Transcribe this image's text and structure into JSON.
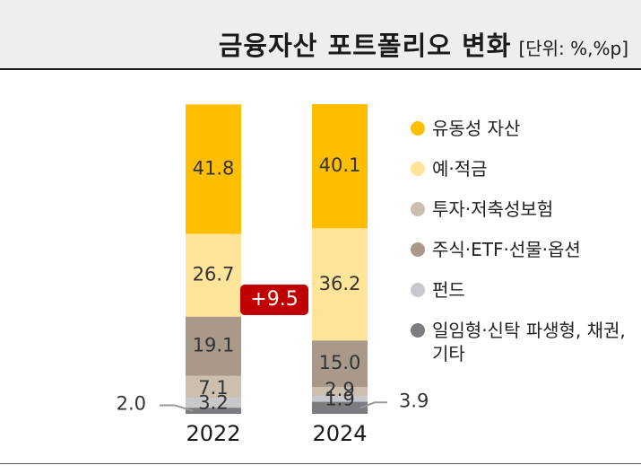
{
  "title": "금융자산 포트폴리오 변화",
  "unit": "[단위: %,%p]",
  "chart_data": {
    "type": "bar",
    "stacked": true,
    "categories": [
      "2022",
      "2024"
    ],
    "series": [
      {
        "name": "일임형·신탁 파생형, 채권, 기타",
        "values": [
          2.0,
          3.9
        ],
        "color": "#7b7b80"
      },
      {
        "name": "펀드",
        "values": [
          3.2,
          1.9
        ],
        "color": "#c6c8cc"
      },
      {
        "name": "투자·저축성보험",
        "values": [
          7.1,
          2.9
        ],
        "color": "#cdbfb0"
      },
      {
        "name": "주식·ETF·선물·옵션",
        "values": [
          19.1,
          15.0
        ],
        "color": "#a8998a"
      },
      {
        "name": "예·적금",
        "values": [
          26.7,
          36.2
        ],
        "color": "#ffe49a"
      },
      {
        "name": "유동성 자산",
        "values": [
          41.8,
          40.1
        ],
        "color": "#ffbf00"
      }
    ],
    "annotations": [
      {
        "text": "+9.5",
        "color": "#c00000"
      }
    ],
    "ylim": [
      0,
      100
    ],
    "legend": "right"
  },
  "legend_items": [
    {
      "label": "유동성 자산",
      "color": "#ffbf00"
    },
    {
      "label": "예·적금",
      "color": "#ffe49a"
    },
    {
      "label": "투자·저축성보험",
      "color": "#cdbfb0"
    },
    {
      "label": "주식·ETF·선물·옵션",
      "color": "#a8998a"
    },
    {
      "label": "펀드",
      "color": "#c6c8cc"
    },
    {
      "label": "일임형·신탁 파생형, 채권, 기타",
      "color": "#7b7b80"
    }
  ]
}
